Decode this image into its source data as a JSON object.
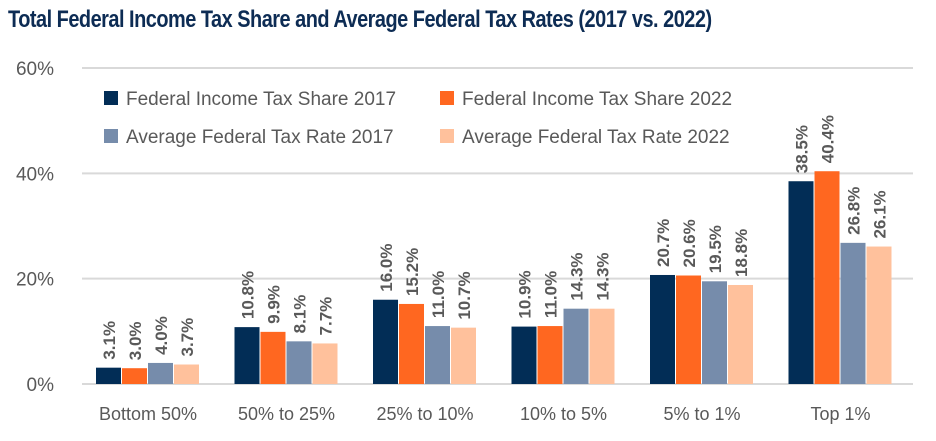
{
  "chart_data": {
    "type": "bar",
    "title": "Total Federal Income Tax Share and Average Federal Tax Rates (2017 vs. 2022)",
    "xlabel": "",
    "ylabel": "",
    "ylim": [
      0,
      60
    ],
    "yticks": [
      0,
      20,
      40,
      60
    ],
    "ytick_labels": [
      "0%",
      "20%",
      "40%",
      "60%"
    ],
    "grid": true,
    "legend_position": "top-left",
    "categories": [
      "Bottom 50%",
      "50% to 25%",
      "25% to 10%",
      "10% to 5%",
      "5% to 1%",
      "Top 1%"
    ],
    "series": [
      {
        "name": "Federal Income Tax Share 2017",
        "color": "#022d56",
        "values": [
          3.1,
          10.8,
          16.0,
          10.9,
          20.7,
          38.5
        ],
        "labels": [
          "3.1%",
          "10.8%",
          "16.0%",
          "10.9%",
          "20.7%",
          "38.5%"
        ]
      },
      {
        "name": "Federal Income Tax Share 2022",
        "color": "#ff6720",
        "values": [
          3.0,
          9.9,
          15.2,
          11.0,
          20.6,
          40.4
        ],
        "labels": [
          "3.0%",
          "9.9%",
          "15.2%",
          "11.0%",
          "20.6%",
          "40.4%"
        ]
      },
      {
        "name": "Average Federal Tax Rate 2017",
        "color": "#768cab",
        "values": [
          4.0,
          8.1,
          11.0,
          14.3,
          19.5,
          26.8
        ],
        "labels": [
          "4.0%",
          "8.1%",
          "11.0%",
          "14.3%",
          "19.5%",
          "26.8%"
        ]
      },
      {
        "name": "Average Federal Tax Rate 2022",
        "color": "#ffc19c",
        "values": [
          3.7,
          7.7,
          10.7,
          14.3,
          18.8,
          26.1
        ],
        "labels": [
          "3.7%",
          "7.7%",
          "10.7%",
          "14.3%",
          "18.8%",
          "26.1%"
        ]
      }
    ]
  }
}
